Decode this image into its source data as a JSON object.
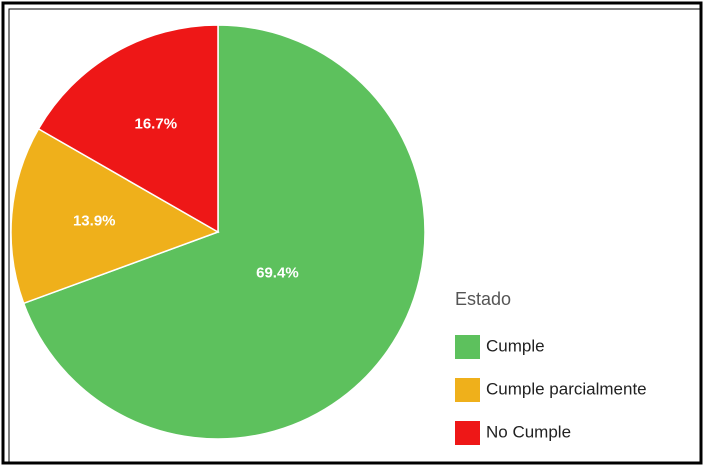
{
  "chart_data": {
    "type": "pie",
    "legend_title": "Estado",
    "categories": [
      "Cumple",
      "Cumple parcialmente",
      "No Cumple"
    ],
    "values": [
      69.4,
      13.9,
      16.7
    ],
    "value_labels": [
      "69.4%",
      "13.9%",
      "16.7%"
    ],
    "colors": [
      "#5dc15d",
      "#efb01b",
      "#ee1717"
    ],
    "legend": "right"
  }
}
